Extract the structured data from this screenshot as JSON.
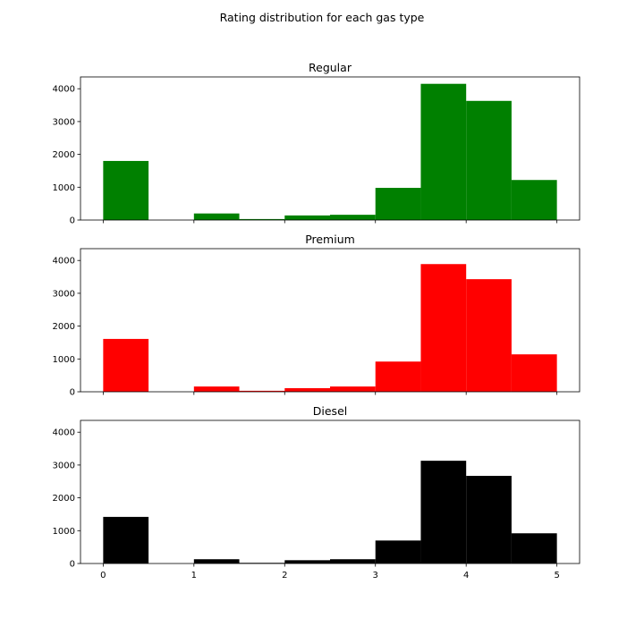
{
  "figure": {
    "suptitle": "Rating distribution for each gas type"
  },
  "chart_data": [
    {
      "type": "bar",
      "title": "Regular",
      "color": "#008000",
      "bin_edges": [
        0,
        0.5,
        1,
        1.5,
        2,
        2.5,
        3,
        3.5,
        4,
        4.5,
        5
      ],
      "values": [
        1800,
        0,
        200,
        30,
        140,
        160,
        980,
        4150,
        3630,
        1220
      ],
      "xlim": [
        -0.25,
        5.25
      ],
      "ylim": [
        0,
        4360
      ],
      "yticks": [
        0,
        1000,
        2000,
        3000,
        4000
      ],
      "xticks": [
        0,
        1,
        2,
        3,
        4,
        5
      ],
      "show_xtick_labels": false
    },
    {
      "type": "bar",
      "title": "Premium",
      "color": "#ff0000",
      "bin_edges": [
        0,
        0.5,
        1,
        1.5,
        2,
        2.5,
        3,
        3.5,
        4,
        4.5,
        5
      ],
      "values": [
        1610,
        0,
        160,
        30,
        110,
        160,
        920,
        3890,
        3430,
        1140
      ],
      "xlim": [
        -0.25,
        5.25
      ],
      "ylim": [
        0,
        4360
      ],
      "yticks": [
        0,
        1000,
        2000,
        3000,
        4000
      ],
      "xticks": [
        0,
        1,
        2,
        3,
        4,
        5
      ],
      "show_xtick_labels": false
    },
    {
      "type": "bar",
      "title": "Diesel",
      "color": "#000000",
      "bin_edges": [
        0,
        0.5,
        1,
        1.5,
        2,
        2.5,
        3,
        3.5,
        4,
        4.5,
        5
      ],
      "values": [
        1420,
        0,
        130,
        20,
        100,
        130,
        700,
        3130,
        2670,
        920
      ],
      "xlim": [
        -0.25,
        5.25
      ],
      "ylim": [
        0,
        4360
      ],
      "yticks": [
        0,
        1000,
        2000,
        3000,
        4000
      ],
      "xticks": [
        0,
        1,
        2,
        3,
        4,
        5
      ],
      "show_xtick_labels": true
    }
  ]
}
